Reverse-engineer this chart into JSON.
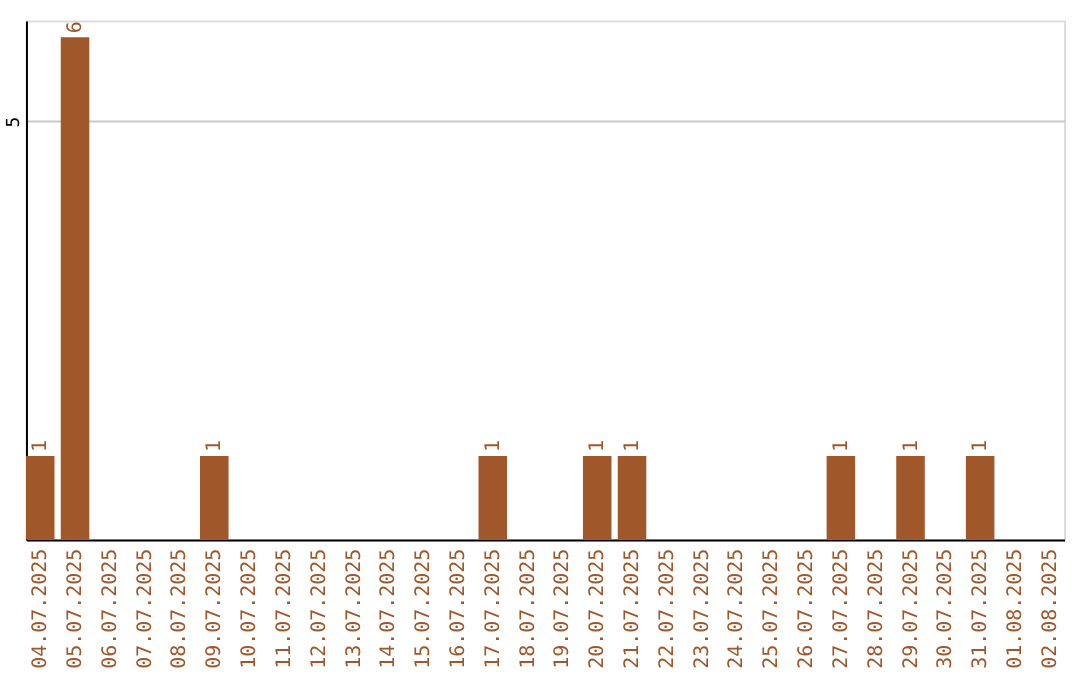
{
  "chart_data": {
    "type": "bar",
    "categories": [
      "04.07.2025",
      "05.07.2025",
      "06.07.2025",
      "07.07.2025",
      "08.07.2025",
      "09.07.2025",
      "10.07.2025",
      "11.07.2025",
      "12.07.2025",
      "13.07.2025",
      "14.07.2025",
      "15.07.2025",
      "16.07.2025",
      "17.07.2025",
      "18.07.2025",
      "19.07.2025",
      "20.07.2025",
      "21.07.2025",
      "22.07.2025",
      "23.07.2025",
      "24.07.2025",
      "25.07.2025",
      "26.07.2025",
      "27.07.2025",
      "28.07.2025",
      "29.07.2025",
      "30.07.2025",
      "31.07.2025",
      "01.08.2025",
      "02.08.2025"
    ],
    "values": [
      1,
      6,
      0,
      0,
      0,
      1,
      0,
      0,
      0,
      0,
      0,
      0,
      0,
      1,
      0,
      0,
      1,
      1,
      0,
      0,
      0,
      0,
      0,
      1,
      0,
      1,
      0,
      1,
      0,
      0
    ],
    "value_labels": [
      "1",
      "6",
      null,
      null,
      null,
      "1",
      null,
      null,
      null,
      null,
      null,
      null,
      null,
      "1",
      null,
      null,
      "1",
      "1",
      null,
      null,
      null,
      null,
      null,
      "1",
      null,
      "1",
      null,
      "1",
      null,
      null
    ],
    "color": "#a0572a",
    "ylim": [
      0,
      6.2
    ],
    "yticks": [
      5
    ],
    "grid": "y"
  }
}
